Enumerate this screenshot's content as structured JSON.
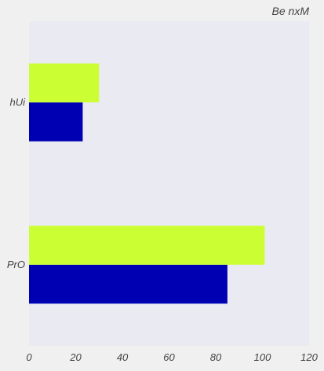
{
  "chart_data": {
    "type": "bar",
    "orientation": "horizontal",
    "title": "Be nxM",
    "categories": [
      "hUi",
      "PrO"
    ],
    "series": [
      {
        "values": [
          23,
          85
        ],
        "color": "#0000b3"
      },
      {
        "values": [
          30,
          101
        ],
        "color": "#ccff33"
      }
    ],
    "xlim": [
      0,
      120
    ],
    "x_ticks": [
      0,
      20,
      40,
      60,
      80,
      100,
      120
    ],
    "xlabel": "",
    "ylabel": "",
    "grid": false,
    "legend": "none",
    "plot_background": "#eaeaf2",
    "page_background": "#f0f0f0"
  }
}
